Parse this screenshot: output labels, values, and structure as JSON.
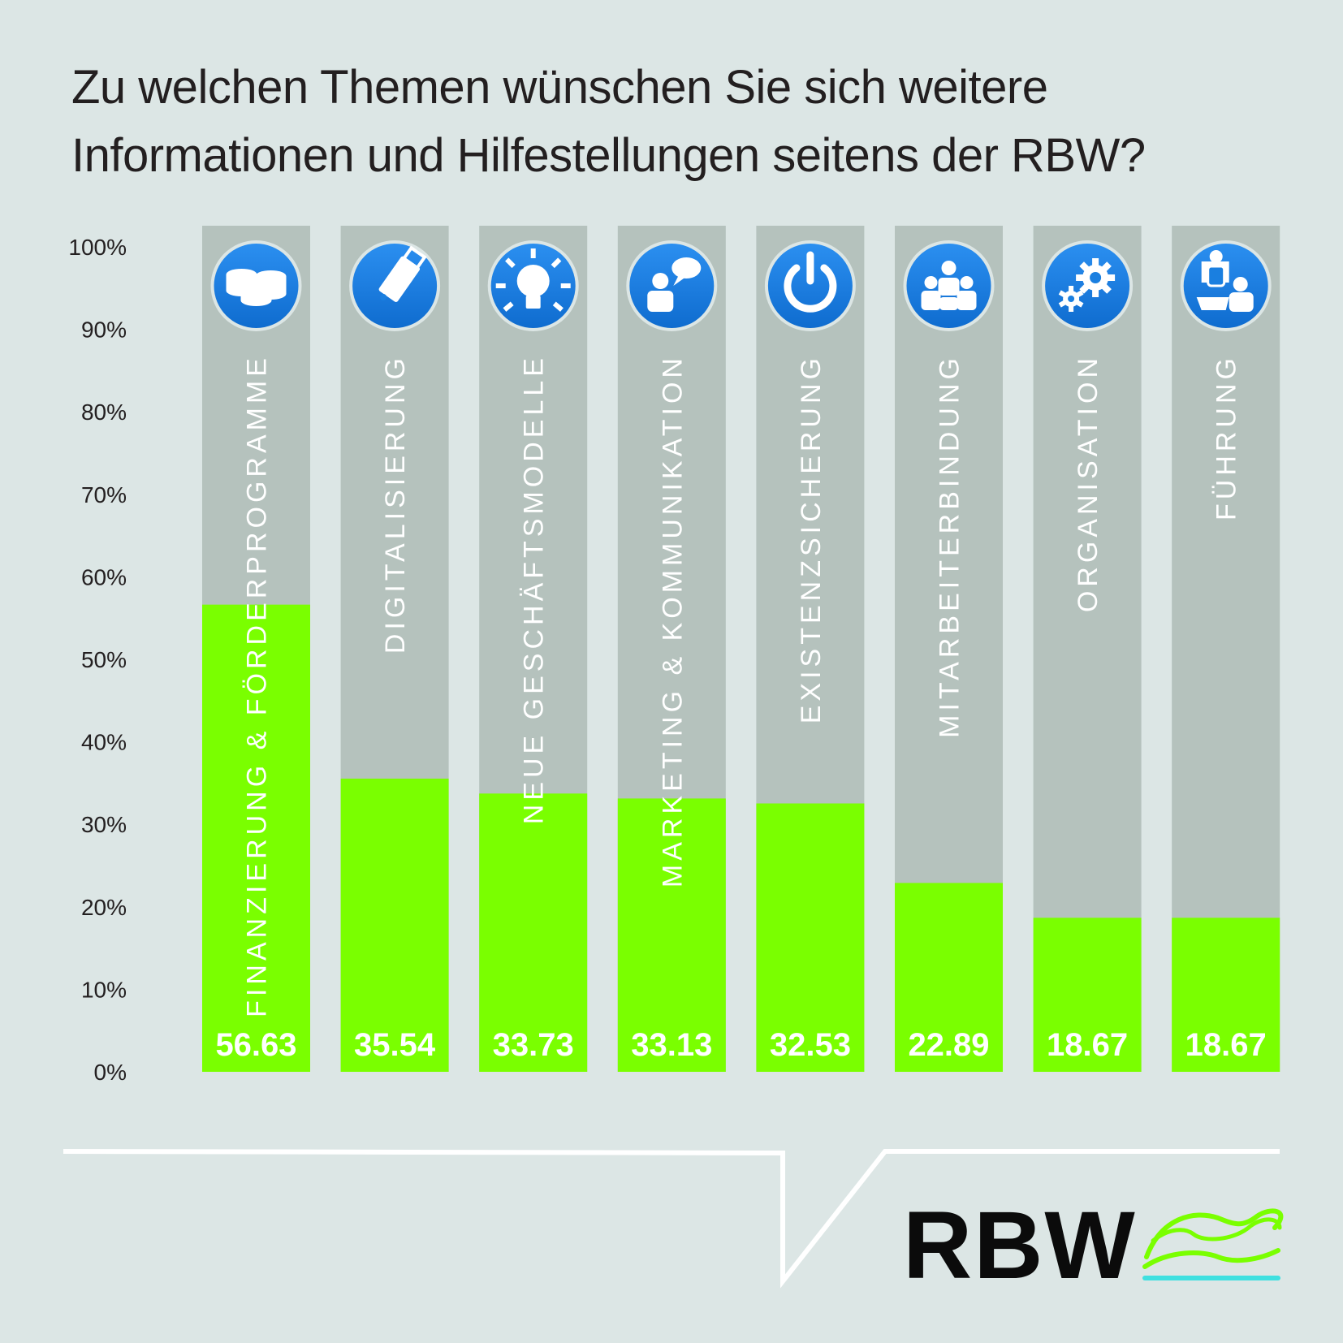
{
  "chart_data": {
    "type": "bar",
    "title_lines": [
      "Zu welchen Themen wünschen Sie sich weitere",
      "Informationen und Hilfestellungen seitens der RBW?"
    ],
    "categories": [
      "FINANZIERUNG & FÖRDERPROGRAMME",
      "DIGITALISIERUNG",
      "NEUE GESCHÄFTSMODELLE",
      "MARKETING & KOMMUNIKATION",
      "EXISTENZSICHERUNG",
      "MITARBEITERBINDUNG",
      "ORGANISATION",
      "FÜHRUNG"
    ],
    "values": [
      56.63,
      35.54,
      33.73,
      33.13,
      32.53,
      22.89,
      18.67,
      18.67
    ],
    "value_labels": [
      "56.63",
      "35.54",
      "33.73",
      "33.13",
      "32.53",
      "22.89",
      "18.67",
      "18.67"
    ],
    "icons": [
      "coins-icon",
      "usb-stick-icon",
      "lightbulb-icon",
      "person-speech-bubble-icon",
      "power-icon",
      "team-icon",
      "gears-icon",
      "meeting-icon"
    ],
    "y_ticks": [
      "0%",
      "10%",
      "20%",
      "30%",
      "40%",
      "50%",
      "60%",
      "70%",
      "80%",
      "90%",
      "100%"
    ],
    "ylim": [
      0,
      100
    ],
    "grid": false,
    "colors": {
      "background": "#dce6e5",
      "bar_track": "#b5c2bd",
      "bar_fill": "#7aff00",
      "icon_circle": "#1a7fe0",
      "text": "#231f20",
      "label": "#ffffff"
    }
  },
  "logo": {
    "text": "RBW"
  }
}
